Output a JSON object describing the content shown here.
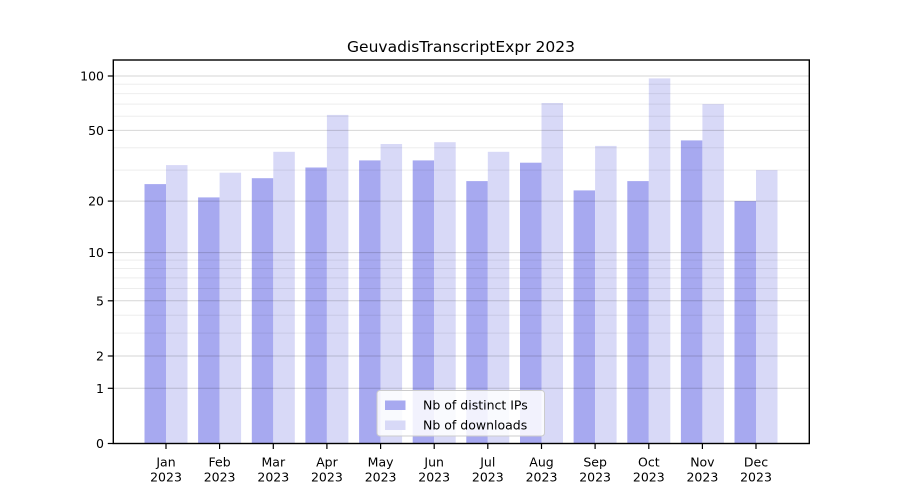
{
  "title": "GeuvadisTranscriptExpr 2023",
  "chart_data": {
    "type": "bar",
    "title": "GeuvadisTranscriptExpr 2023",
    "categories": [
      "Jan",
      "Feb",
      "Mar",
      "Apr",
      "May",
      "Jun",
      "Jul",
      "Aug",
      "Sep",
      "Oct",
      "Nov",
      "Dec"
    ],
    "year_label": "2023",
    "series": [
      {
        "name": "Nb of distinct IPs",
        "color": "#a7a9f0",
        "values": [
          25,
          21,
          27,
          31,
          34,
          34,
          26,
          33,
          23,
          26,
          44,
          20
        ]
      },
      {
        "name": "Nb of downloads",
        "color": "#d8d9f7",
        "values": [
          32,
          29,
          38,
          61,
          42,
          43,
          38,
          71,
          41,
          97,
          70,
          30
        ]
      }
    ],
    "xlabel": "",
    "ylabel": "",
    "yscale": "log1p",
    "yticks": [
      0,
      1,
      2,
      5,
      10,
      20,
      50,
      100
    ],
    "yminorticks": [
      3,
      4,
      6,
      7,
      8,
      9,
      30,
      40,
      60,
      70,
      80,
      90
    ],
    "ylim": [
      0,
      122
    ],
    "grid": "on",
    "legend_position": "lower center",
    "colors": {
      "major_grid": "rgba(0,0,0,0.16)",
      "minor_grid": "rgba(0,0,0,0.07)",
      "spine": "#000000",
      "legend_border": "#cccccc",
      "legend_bg": "rgba(255,255,255,0.85)"
    }
  }
}
